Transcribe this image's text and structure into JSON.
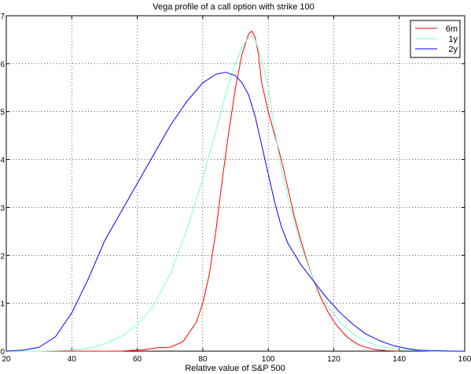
{
  "chart_data": {
    "type": "line",
    "title": "Vega profile of a call option with strike 100",
    "xlabel": "Relative value of S&P 500",
    "ylabel": "",
    "xlim": [
      20,
      160
    ],
    "ylim": [
      0,
      7
    ],
    "xticks": [
      "20",
      "40",
      "60",
      "80",
      "100",
      "120",
      "140",
      "160"
    ],
    "yticks": [
      "0",
      "1",
      "2",
      "3",
      "4",
      "5",
      "6",
      "7"
    ],
    "grid": true,
    "legend_position": "top-right",
    "series": [
      {
        "name": "6m",
        "color": "#ff0000",
        "points": [
          [
            20,
            0
          ],
          [
            40,
            0
          ],
          [
            55,
            0
          ],
          [
            62,
            0.03
          ],
          [
            66,
            0.07
          ],
          [
            70,
            0.08
          ],
          [
            74,
            0.2
          ],
          [
            78,
            0.6
          ],
          [
            80,
            1.0
          ],
          [
            82,
            1.6
          ],
          [
            84,
            2.5
          ],
          [
            86,
            3.6
          ],
          [
            88,
            4.6
          ],
          [
            90,
            5.5
          ],
          [
            92,
            6.2
          ],
          [
            94,
            6.62
          ],
          [
            95,
            6.68
          ],
          [
            96,
            6.55
          ],
          [
            97,
            6.2
          ],
          [
            98,
            5.6
          ],
          [
            100,
            5.0
          ],
          [
            102,
            4.5
          ],
          [
            104,
            4.0
          ],
          [
            106,
            3.4
          ],
          [
            108,
            2.8
          ],
          [
            110,
            2.3
          ],
          [
            112,
            1.85
          ],
          [
            114,
            1.45
          ],
          [
            116,
            1.12
          ],
          [
            118,
            0.85
          ],
          [
            120,
            0.62
          ],
          [
            122,
            0.45
          ],
          [
            124,
            0.3
          ],
          [
            126,
            0.2
          ],
          [
            128,
            0.12
          ],
          [
            132,
            0.04
          ],
          [
            136,
            0.01
          ],
          [
            140,
            0
          ]
        ]
      },
      {
        "name": "1y",
        "color": "#7fffd4",
        "points": [
          [
            20,
            0
          ],
          [
            30,
            0
          ],
          [
            40,
            0.02
          ],
          [
            45,
            0.06
          ],
          [
            50,
            0.15
          ],
          [
            55,
            0.3
          ],
          [
            60,
            0.55
          ],
          [
            65,
            0.95
          ],
          [
            70,
            1.6
          ],
          [
            75,
            2.5
          ],
          [
            80,
            3.6
          ],
          [
            84,
            4.6
          ],
          [
            88,
            5.6
          ],
          [
            90,
            6.0
          ],
          [
            92,
            6.35
          ],
          [
            94,
            6.55
          ],
          [
            95,
            6.58
          ],
          [
            96,
            6.5
          ],
          [
            98,
            6.1
          ],
          [
            100,
            5.5
          ],
          [
            102,
            4.6
          ],
          [
            104,
            3.8
          ],
          [
            106,
            3.2
          ],
          [
            108,
            2.7
          ],
          [
            110,
            2.2
          ],
          [
            114,
            1.45
          ],
          [
            118,
            0.95
          ],
          [
            122,
            0.6
          ],
          [
            126,
            0.35
          ],
          [
            130,
            0.2
          ],
          [
            134,
            0.1
          ],
          [
            140,
            0.03
          ],
          [
            150,
            0
          ],
          [
            160,
            0
          ]
        ]
      },
      {
        "name": "2y",
        "color": "#0000ff",
        "points": [
          [
            20,
            0
          ],
          [
            25,
            0.02
          ],
          [
            30,
            0.08
          ],
          [
            35,
            0.3
          ],
          [
            40,
            0.8
          ],
          [
            45,
            1.5
          ],
          [
            50,
            2.3
          ],
          [
            55,
            2.9
          ],
          [
            60,
            3.5
          ],
          [
            65,
            4.1
          ],
          [
            70,
            4.7
          ],
          [
            75,
            5.2
          ],
          [
            80,
            5.6
          ],
          [
            84,
            5.78
          ],
          [
            87,
            5.82
          ],
          [
            90,
            5.75
          ],
          [
            92,
            5.6
          ],
          [
            94,
            5.35
          ],
          [
            96,
            4.9
          ],
          [
            98,
            4.3
          ],
          [
            100,
            3.7
          ],
          [
            102,
            3.1
          ],
          [
            104,
            2.6
          ],
          [
            106,
            2.25
          ],
          [
            110,
            1.8
          ],
          [
            114,
            1.45
          ],
          [
            118,
            1.1
          ],
          [
            122,
            0.8
          ],
          [
            126,
            0.55
          ],
          [
            130,
            0.35
          ],
          [
            134,
            0.22
          ],
          [
            138,
            0.12
          ],
          [
            142,
            0.06
          ],
          [
            146,
            0.02
          ],
          [
            150,
            0.01
          ],
          [
            156,
            0
          ],
          [
            160,
            0
          ]
        ]
      }
    ]
  }
}
